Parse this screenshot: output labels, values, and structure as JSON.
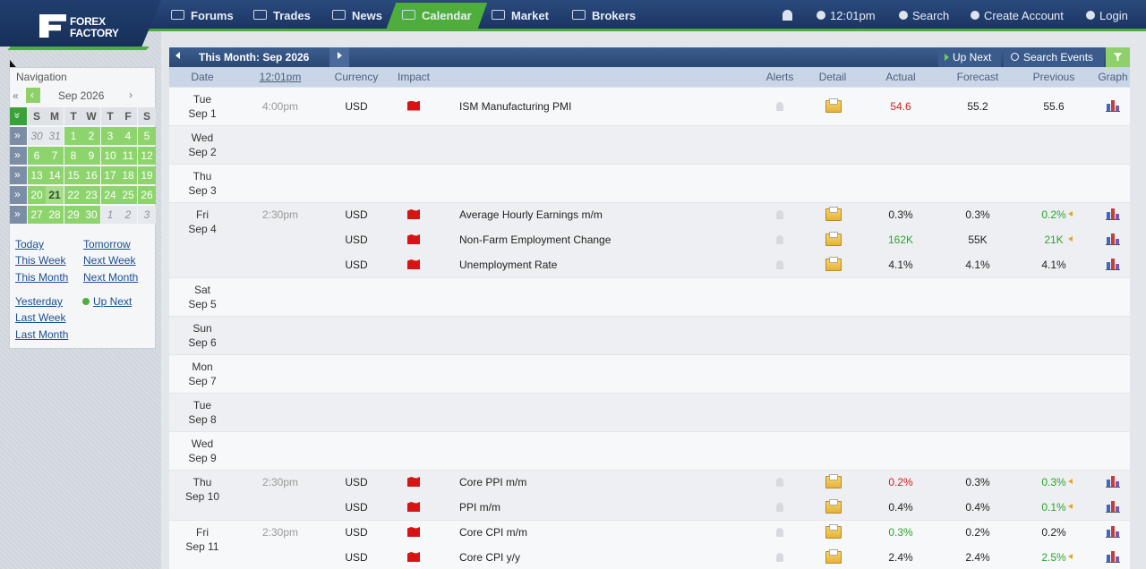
{
  "header": {
    "logo": [
      "FOREX",
      "FACTORY"
    ],
    "nav": [
      "Forums",
      "Trades",
      "News",
      "Calendar",
      "Market",
      "Brokers"
    ],
    "time": "12:01pm",
    "links": [
      "Search",
      "Create Account",
      "Login"
    ]
  },
  "sidebar": {
    "title": "Navigation",
    "prev_year": "«",
    "prev_month": "‹",
    "month": "Sep 2026",
    "next_month": "›",
    "row_arrow": "»",
    "weekdays": [
      "S",
      "M",
      "T",
      "W",
      "T",
      "F",
      "S"
    ],
    "weeks": [
      [
        30,
        31,
        1,
        2,
        3,
        4,
        5
      ],
      [
        6,
        7,
        8,
        9,
        10,
        11,
        12
      ],
      [
        13,
        14,
        15,
        16,
        17,
        18,
        19
      ],
      [
        20,
        21,
        22,
        23,
        24,
        25,
        26
      ],
      [
        27,
        28,
        29,
        30,
        1,
        2,
        3
      ]
    ],
    "links": [
      [
        "Today",
        "Tomorrow"
      ],
      [
        "This Week",
        "Next Week"
      ],
      [
        "This Month",
        "Next Month"
      ],
      [
        "Yesterday",
        "Up Next"
      ],
      [
        "Last Week"
      ],
      [
        "Last Month"
      ]
    ]
  },
  "calendar": {
    "title": "This Month: Sep 2026",
    "up_next": "Up Next",
    "search": "Search Events",
    "columns": [
      "Date",
      "12:01pm",
      "Currency",
      "Impact",
      "Alerts",
      "Detail",
      "Actual",
      "Forecast",
      "Previous",
      "Graph"
    ],
    "days": [
      {
        "day": "Tue",
        "date": "Sep 1",
        "events": [
          {
            "time": "4:00pm",
            "currency": "USD",
            "title": "ISM Manufacturing PMI",
            "actual": "54.6",
            "actual_color": "#d42020",
            "forecast": "55.2",
            "previous": "55.6"
          }
        ]
      },
      {
        "day": "Wed",
        "date": "Sep 2",
        "events": []
      },
      {
        "day": "Thu",
        "date": "Sep 3",
        "events": []
      },
      {
        "day": "Fri",
        "date": "Sep 4",
        "events": [
          {
            "time": "2:30pm",
            "currency": "USD",
            "title": "Average Hourly Earnings m/m",
            "actual": "0.3%",
            "forecast": "0.3%",
            "previous": "0.2%",
            "previous_color": "#2aa52a"
          },
          {
            "currency": "USD",
            "title": "Non-Farm Employment Change",
            "actual": "162K",
            "actual_color": "#2aa52a",
            "forecast": "55K",
            "previous": "21K",
            "previous_color": "#2aa52a"
          },
          {
            "currency": "USD",
            "title": "Unemployment Rate",
            "actual": "4.1%",
            "forecast": "4.1%",
            "previous": "4.1%"
          }
        ]
      },
      {
        "day": "Sat",
        "date": "Sep 5",
        "events": []
      },
      {
        "day": "Sun",
        "date": "Sep 6",
        "events": []
      },
      {
        "day": "Mon",
        "date": "Sep 7",
        "events": []
      },
      {
        "day": "Tue",
        "date": "Sep 8",
        "events": []
      },
      {
        "day": "Wed",
        "date": "Sep 9",
        "events": []
      },
      {
        "day": "Thu",
        "date": "Sep 10",
        "events": [
          {
            "time": "2:30pm",
            "currency": "USD",
            "title": "Core PPI m/m",
            "actual": "0.2%",
            "actual_color": "#d42020",
            "forecast": "0.3%",
            "previous": "0.3%",
            "previous_color": "#2aa52a"
          },
          {
            "currency": "USD",
            "title": "PPI m/m",
            "actual": "0.4%",
            "forecast": "0.4%",
            "previous": "0.1%",
            "previous_color": "#2aa52a"
          }
        ]
      },
      {
        "day": "Fri",
        "date": "Sep 11",
        "events": [
          {
            "time": "2:30pm",
            "currency": "USD",
            "title": "Core CPI m/m",
            "actual": "0.3%",
            "actual_color": "#2aa52a",
            "forecast": "0.2%",
            "previous": "0.2%"
          },
          {
            "currency": "USD",
            "title": "Core CPI y/y",
            "actual": "2.4%",
            "forecast": "2.4%",
            "previous": "2.5%",
            "previous_color": "#2aa52a"
          }
        ]
      }
    ]
  }
}
